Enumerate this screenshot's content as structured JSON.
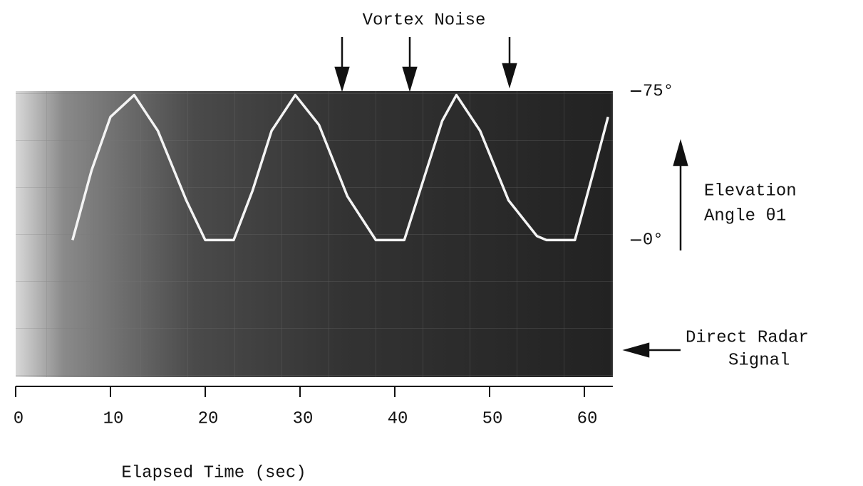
{
  "chart_data": {
    "type": "line",
    "annotation_top": "Vortex Noise",
    "y_label": [
      "Elevation",
      "Angle θ1"
    ],
    "annotation_right": [
      "Direct Radar",
      "Signal"
    ],
    "x_label": "Elapsed Time (sec)",
    "x": [
      6,
      8,
      10,
      12.5,
      15,
      18,
      20,
      23,
      25,
      27,
      29.5,
      32,
      35,
      38,
      41,
      43,
      45,
      46.5,
      49,
      52,
      55,
      56,
      59,
      61,
      62.5
    ],
    "values": [
      0,
      35,
      62,
      73,
      55,
      20,
      0,
      0,
      25,
      55,
      73,
      58,
      22,
      0,
      0,
      30,
      60,
      73,
      55,
      20,
      2,
      0,
      0,
      35,
      62
    ],
    "color": "#f4f4f4",
    "xlim": [
      0,
      63
    ],
    "xticks": [
      0,
      10,
      20,
      30,
      40,
      50,
      60
    ],
    "ylim": [
      -69,
      75
    ],
    "yticks": [
      {
        "value": 0,
        "label": "0°"
      },
      {
        "value": 75,
        "label": "75°"
      }
    ]
  }
}
